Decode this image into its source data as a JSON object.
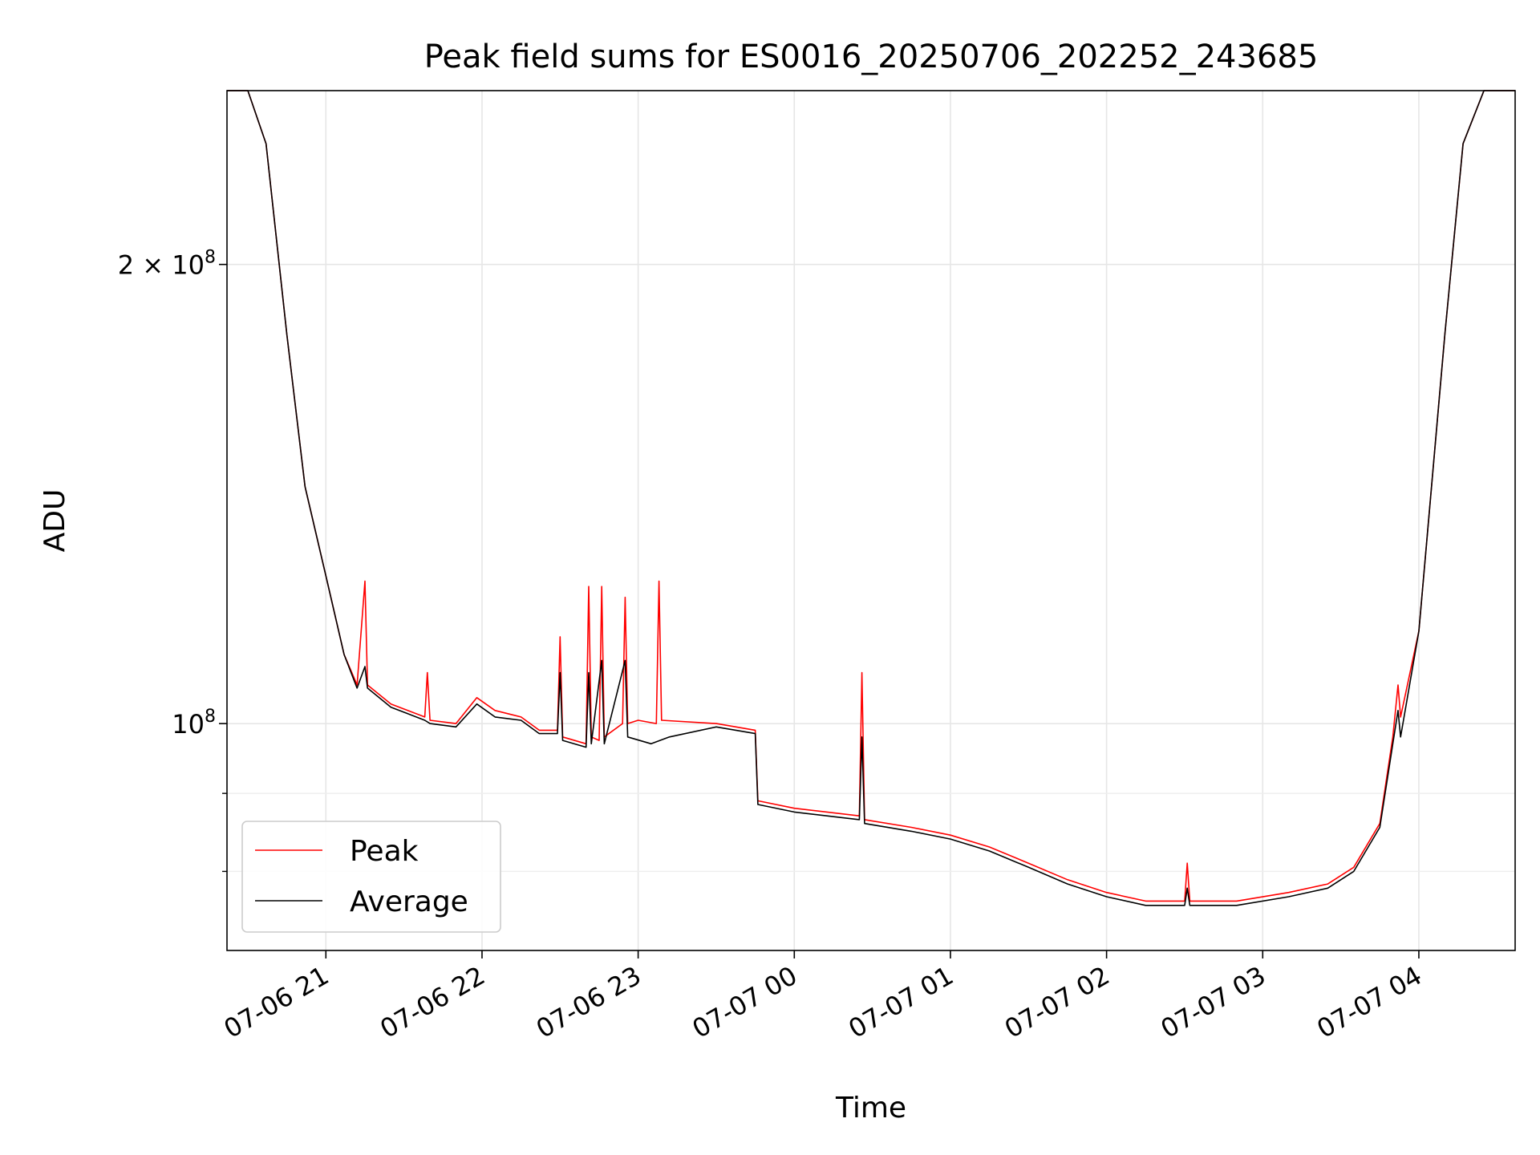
{
  "chart_data": {
    "type": "line",
    "title": "Peak field sums for ES0016_20250706_202252_243685",
    "xlabel": "Time",
    "ylabel": "ADU",
    "x_range": [
      "2025-07-06 20:22",
      "2025-07-07 04:37"
    ],
    "y_scale": "log",
    "ylim": [
      71000000,
      260000000
    ],
    "grid": true,
    "legend_position": "lower-left",
    "x_ticks": [
      {
        "t": "2025-07-06 21:00",
        "label": "07-06 21"
      },
      {
        "t": "2025-07-06 22:00",
        "label": "07-06 22"
      },
      {
        "t": "2025-07-06 23:00",
        "label": "07-06 23"
      },
      {
        "t": "2025-07-07 00:00",
        "label": "07-07 00"
      },
      {
        "t": "2025-07-07 01:00",
        "label": "07-07 01"
      },
      {
        "t": "2025-07-07 02:00",
        "label": "07-07 02"
      },
      {
        "t": "2025-07-07 03:00",
        "label": "07-07 03"
      },
      {
        "t": "2025-07-07 04:00",
        "label": "07-07 04"
      }
    ],
    "y_ticks_major": [
      {
        "value": 200000000,
        "mant": "2 × 10",
        "exp": "8"
      },
      {
        "value": 100000000,
        "mant": "10",
        "exp": "8"
      }
    ],
    "y_ticks_minor": [
      90000000,
      80000000
    ],
    "series": [
      {
        "name": "Peak",
        "color": "#ff0000",
        "points": [
          [
            "2025-07-06 20:22",
            260000000
          ],
          [
            "2025-07-06 20:30",
            260000000
          ],
          [
            "2025-07-06 20:37",
            240000000
          ],
          [
            "2025-07-06 20:45",
            180000000
          ],
          [
            "2025-07-06 20:52",
            143000000
          ],
          [
            "2025-07-06 21:00",
            125000000
          ],
          [
            "2025-07-06 21:07",
            111000000
          ],
          [
            "2025-07-06 21:12",
            106000000
          ],
          [
            "2025-07-06 21:15",
            124000000
          ],
          [
            "2025-07-06 21:16",
            106000000
          ],
          [
            "2025-07-06 21:25",
            103000000
          ],
          [
            "2025-07-06 21:38",
            101000000
          ],
          [
            "2025-07-06 21:39",
            108000000
          ],
          [
            "2025-07-06 21:40",
            100500000
          ],
          [
            "2025-07-06 21:50",
            100000000
          ],
          [
            "2025-07-06 21:58",
            104000000
          ],
          [
            "2025-07-06 22:05",
            102000000
          ],
          [
            "2025-07-06 22:15",
            101000000
          ],
          [
            "2025-07-06 22:22",
            99000000
          ],
          [
            "2025-07-06 22:29",
            99000000
          ],
          [
            "2025-07-06 22:30",
            114000000
          ],
          [
            "2025-07-06 22:31",
            98000000
          ],
          [
            "2025-07-06 22:40",
            97000000
          ],
          [
            "2025-07-06 22:41",
            123000000
          ],
          [
            "2025-07-06 22:42",
            98000000
          ],
          [
            "2025-07-06 22:45",
            97500000
          ],
          [
            "2025-07-06 22:46",
            123000000
          ],
          [
            "2025-07-06 22:47",
            98000000
          ],
          [
            "2025-07-06 22:54",
            100000000
          ],
          [
            "2025-07-06 22:55",
            121000000
          ],
          [
            "2025-07-06 22:56",
            100000000
          ],
          [
            "2025-07-06 23:00",
            100500000
          ],
          [
            "2025-07-06 23:07",
            100000000
          ],
          [
            "2025-07-06 23:08",
            124000000
          ],
          [
            "2025-07-06 23:09",
            100500000
          ],
          [
            "2025-07-06 23:30",
            100000000
          ],
          [
            "2025-07-06 23:45",
            99000000
          ],
          [
            "2025-07-06 23:46",
            89000000
          ],
          [
            "2025-07-07 00:00",
            88000000
          ],
          [
            "2025-07-07 00:25",
            87000000
          ],
          [
            "2025-07-07 00:26",
            108000000
          ],
          [
            "2025-07-07 00:27",
            86500000
          ],
          [
            "2025-07-07 00:45",
            85500000
          ],
          [
            "2025-07-07 01:00",
            84500000
          ],
          [
            "2025-07-07 01:15",
            83000000
          ],
          [
            "2025-07-07 01:30",
            81000000
          ],
          [
            "2025-07-07 01:45",
            79000000
          ],
          [
            "2025-07-07 02:00",
            77500000
          ],
          [
            "2025-07-07 02:15",
            76500000
          ],
          [
            "2025-07-07 02:30",
            76500000
          ],
          [
            "2025-07-07 02:31",
            81000000
          ],
          [
            "2025-07-07 02:32",
            76500000
          ],
          [
            "2025-07-07 02:50",
            76500000
          ],
          [
            "2025-07-07 03:10",
            77500000
          ],
          [
            "2025-07-07 03:25",
            78500000
          ],
          [
            "2025-07-07 03:35",
            80500000
          ],
          [
            "2025-07-07 03:45",
            86000000
          ],
          [
            "2025-07-07 03:50",
            98000000
          ],
          [
            "2025-07-07 03:52",
            106000000
          ],
          [
            "2025-07-07 03:53",
            101000000
          ],
          [
            "2025-07-07 04:00",
            115000000
          ],
          [
            "2025-07-07 04:10",
            180000000
          ],
          [
            "2025-07-07 04:17",
            240000000
          ],
          [
            "2025-07-07 04:25",
            260000000
          ],
          [
            "2025-07-07 04:37",
            260000000
          ]
        ]
      },
      {
        "name": "Average",
        "color": "#000000",
        "points": [
          [
            "2025-07-06 20:22",
            260000000
          ],
          [
            "2025-07-06 20:30",
            260000000
          ],
          [
            "2025-07-06 20:37",
            240000000
          ],
          [
            "2025-07-06 20:45",
            180000000
          ],
          [
            "2025-07-06 20:52",
            143000000
          ],
          [
            "2025-07-06 21:00",
            125000000
          ],
          [
            "2025-07-06 21:07",
            111000000
          ],
          [
            "2025-07-06 21:12",
            105500000
          ],
          [
            "2025-07-06 21:15",
            109000000
          ],
          [
            "2025-07-06 21:16",
            105500000
          ],
          [
            "2025-07-06 21:25",
            102500000
          ],
          [
            "2025-07-06 21:38",
            100500000
          ],
          [
            "2025-07-06 21:40",
            100000000
          ],
          [
            "2025-07-06 21:50",
            99500000
          ],
          [
            "2025-07-06 21:58",
            103000000
          ],
          [
            "2025-07-06 22:05",
            101000000
          ],
          [
            "2025-07-06 22:15",
            100500000
          ],
          [
            "2025-07-06 22:22",
            98500000
          ],
          [
            "2025-07-06 22:29",
            98500000
          ],
          [
            "2025-07-06 22:30",
            108000000
          ],
          [
            "2025-07-06 22:31",
            97500000
          ],
          [
            "2025-07-06 22:40",
            96500000
          ],
          [
            "2025-07-06 22:41",
            108000000
          ],
          [
            "2025-07-06 22:42",
            97000000
          ],
          [
            "2025-07-06 22:46",
            110000000
          ],
          [
            "2025-07-06 22:47",
            97000000
          ],
          [
            "2025-07-06 22:55",
            110000000
          ],
          [
            "2025-07-06 22:56",
            98000000
          ],
          [
            "2025-07-06 23:05",
            97000000
          ],
          [
            "2025-07-06 23:12",
            98000000
          ],
          [
            "2025-07-06 23:30",
            99500000
          ],
          [
            "2025-07-06 23:45",
            98500000
          ],
          [
            "2025-07-06 23:46",
            88500000
          ],
          [
            "2025-07-07 00:00",
            87500000
          ],
          [
            "2025-07-07 00:25",
            86500000
          ],
          [
            "2025-07-07 00:26",
            98000000
          ],
          [
            "2025-07-07 00:27",
            86000000
          ],
          [
            "2025-07-07 00:45",
            85000000
          ],
          [
            "2025-07-07 01:00",
            84000000
          ],
          [
            "2025-07-07 01:15",
            82500000
          ],
          [
            "2025-07-07 01:30",
            80500000
          ],
          [
            "2025-07-07 01:45",
            78500000
          ],
          [
            "2025-07-07 02:00",
            77000000
          ],
          [
            "2025-07-07 02:15",
            76000000
          ],
          [
            "2025-07-07 02:30",
            76000000
          ],
          [
            "2025-07-07 02:31",
            78000000
          ],
          [
            "2025-07-07 02:32",
            76000000
          ],
          [
            "2025-07-07 02:50",
            76000000
          ],
          [
            "2025-07-07 03:10",
            77000000
          ],
          [
            "2025-07-07 03:25",
            78000000
          ],
          [
            "2025-07-07 03:35",
            80000000
          ],
          [
            "2025-07-07 03:45",
            85500000
          ],
          [
            "2025-07-07 03:50",
            97000000
          ],
          [
            "2025-07-07 03:52",
            102000000
          ],
          [
            "2025-07-07 03:53",
            98000000
          ],
          [
            "2025-07-07 04:00",
            115000000
          ],
          [
            "2025-07-07 04:10",
            180000000
          ],
          [
            "2025-07-07 04:17",
            240000000
          ],
          [
            "2025-07-07 04:25",
            260000000
          ],
          [
            "2025-07-07 04:37",
            260000000
          ]
        ]
      }
    ]
  }
}
